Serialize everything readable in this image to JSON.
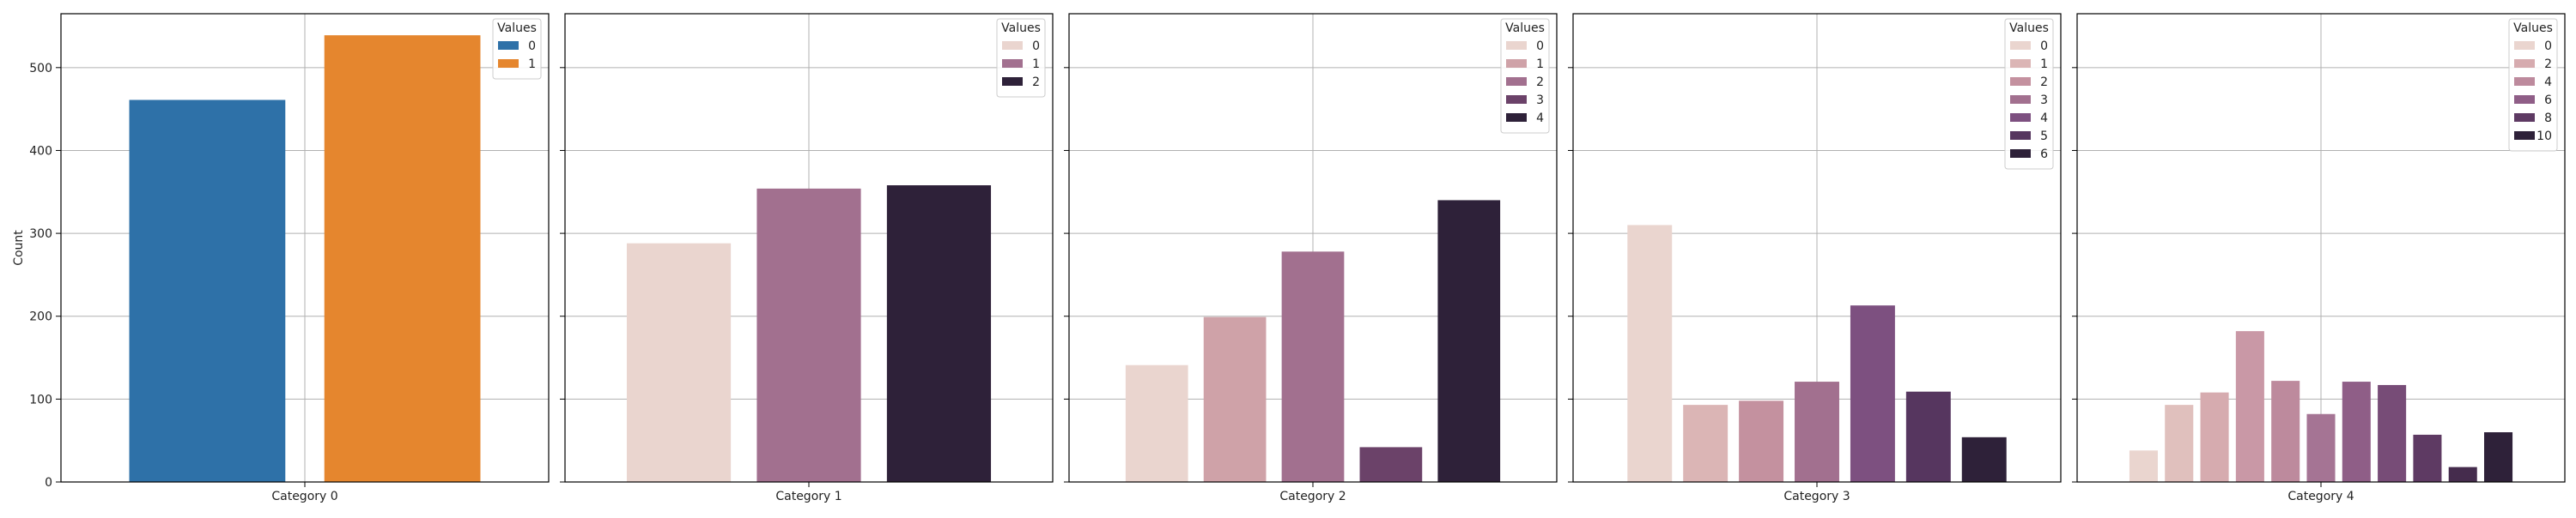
{
  "chart_data": {
    "type": "bar",
    "ylabel": "Count",
    "ylim": [
      0,
      565
    ],
    "yticks": [
      0,
      100,
      200,
      300,
      400,
      500
    ],
    "grid": true,
    "legend_title": "Values",
    "legend_placement": "top-right",
    "panels": [
      {
        "category": "Category 0",
        "legend": [
          {
            "label": "0",
            "color": "#2e71a8"
          },
          {
            "label": "1",
            "color": "#e5862e"
          }
        ],
        "bars": [
          {
            "label": "0",
            "value": 461,
            "color": "#2e71a8",
            "slot": 0,
            "slots": 2
          },
          {
            "label": "1",
            "value": 539,
            "color": "#e5862e",
            "slot": 1,
            "slots": 2
          }
        ]
      },
      {
        "category": "Category 1",
        "legend": [
          {
            "label": "0",
            "color": "#ead5cf"
          },
          {
            "label": "1",
            "color": "#a2708f"
          },
          {
            "label": "2",
            "color": "#2e2139"
          }
        ],
        "bars": [
          {
            "label": "0",
            "value": 288,
            "color": "#ead5cf",
            "slot": 0,
            "slots": 3
          },
          {
            "label": "1",
            "value": 354,
            "color": "#a2708f",
            "slot": 1,
            "slots": 3
          },
          {
            "label": "2",
            "value": 358,
            "color": "#2e2139",
            "slot": 2,
            "slots": 3
          }
        ]
      },
      {
        "category": "Category 2",
        "legend": [
          {
            "label": "0",
            "color": "#ead5cf"
          },
          {
            "label": "1",
            "color": "#cfa2a8"
          },
          {
            "label": "2",
            "color": "#a2708f"
          },
          {
            "label": "3",
            "color": "#6b4269"
          },
          {
            "label": "4",
            "color": "#2e2139"
          }
        ],
        "bars": [
          {
            "label": "0",
            "value": 141,
            "color": "#ead5cf",
            "slot": 0,
            "slots": 5
          },
          {
            "label": "1",
            "value": 199,
            "color": "#cfa2a8",
            "slot": 1,
            "slots": 5
          },
          {
            "label": "2",
            "value": 278,
            "color": "#a2708f",
            "slot": 2,
            "slots": 5
          },
          {
            "label": "3",
            "value": 42,
            "color": "#6b4269",
            "slot": 3,
            "slots": 5
          },
          {
            "label": "4",
            "value": 340,
            "color": "#2e2139",
            "slot": 4,
            "slots": 5
          }
        ]
      },
      {
        "category": "Category 3",
        "legend": [
          {
            "label": "0",
            "color": "#ead5cf"
          },
          {
            "label": "1",
            "color": "#dbb5b5"
          },
          {
            "label": "2",
            "color": "#c4919f"
          },
          {
            "label": "3",
            "color": "#a2708f"
          },
          {
            "label": "4",
            "color": "#7d5080"
          },
          {
            "label": "5",
            "color": "#56365f"
          },
          {
            "label": "6",
            "color": "#2e2139"
          }
        ],
        "bars": [
          {
            "label": "0",
            "value": 310,
            "color": "#ead5cf",
            "slot": 0,
            "slots": 7
          },
          {
            "label": "1",
            "value": 93,
            "color": "#dbb5b5",
            "slot": 1,
            "slots": 7
          },
          {
            "label": "2",
            "value": 98,
            "color": "#c4919f",
            "slot": 2,
            "slots": 7
          },
          {
            "label": "3",
            "value": 121,
            "color": "#a2708f",
            "slot": 3,
            "slots": 7
          },
          {
            "label": "4",
            "value": 213,
            "color": "#7d5080",
            "slot": 4,
            "slots": 7
          },
          {
            "label": "5",
            "value": 109,
            "color": "#56365f",
            "slot": 5,
            "slots": 7
          },
          {
            "label": "6",
            "value": 54,
            "color": "#2e2139",
            "slot": 6,
            "slots": 7
          }
        ]
      },
      {
        "category": "Category 4",
        "legend": [
          {
            "label": "0",
            "color": "#ead5cf"
          },
          {
            "label": "2",
            "color": "#d6abaf"
          },
          {
            "label": "4",
            "color": "#bd8a9d"
          },
          {
            "label": "6",
            "color": "#8f5e87"
          },
          {
            "label": "8",
            "color": "#5e3a63"
          },
          {
            "label": "10",
            "color": "#2e2139"
          }
        ],
        "bars": [
          {
            "label": "0",
            "value": 38,
            "color": "#ead5cf",
            "slot": 0,
            "slots": 11
          },
          {
            "label": "1",
            "value": 93,
            "color": "#e0c0bd",
            "slot": 1,
            "slots": 11
          },
          {
            "label": "2",
            "value": 108,
            "color": "#d6abaf",
            "slot": 2,
            "slots": 11
          },
          {
            "label": "3",
            "value": 182,
            "color": "#c998a6",
            "slot": 3,
            "slots": 11
          },
          {
            "label": "4",
            "value": 122,
            "color": "#bd8a9d",
            "slot": 4,
            "slots": 11
          },
          {
            "label": "5",
            "value": 82,
            "color": "#a57494",
            "slot": 5,
            "slots": 11
          },
          {
            "label": "6",
            "value": 121,
            "color": "#8f5e87",
            "slot": 6,
            "slots": 11
          },
          {
            "label": "7",
            "value": 117,
            "color": "#774c77",
            "slot": 7,
            "slots": 11
          },
          {
            "label": "8",
            "value": 57,
            "color": "#5e3a63",
            "slot": 8,
            "slots": 11
          },
          {
            "label": "9",
            "value": 18,
            "color": "#452c4d",
            "slot": 9,
            "slots": 11
          },
          {
            "label": "10",
            "value": 60,
            "color": "#2e2139",
            "slot": 10,
            "slots": 11
          }
        ]
      }
    ]
  }
}
